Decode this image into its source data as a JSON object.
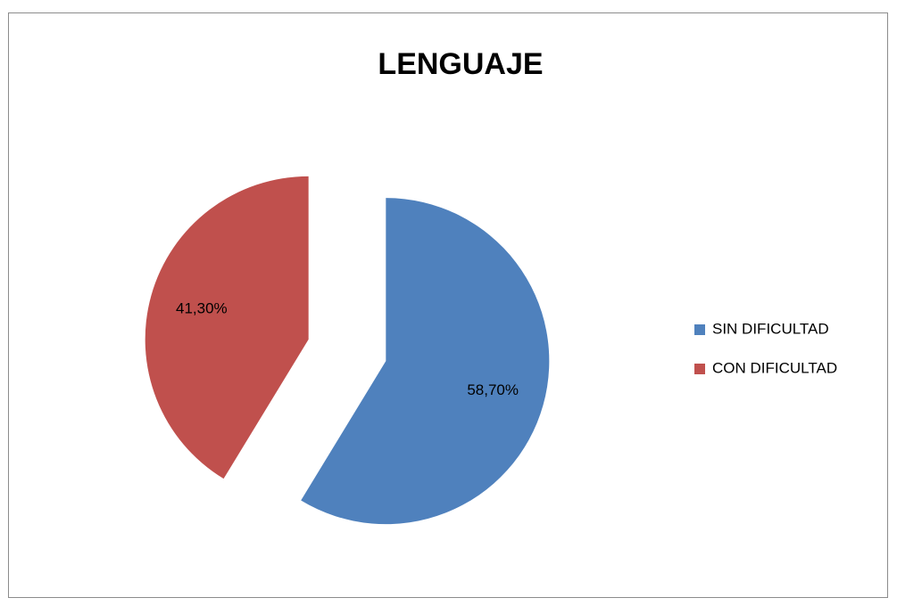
{
  "chart_data": {
    "type": "pie",
    "title": "LENGUAJE",
    "categories": [
      "SIN DIFICULTAD",
      "CON DIFICULTAD"
    ],
    "values": [
      58.7,
      41.3
    ],
    "value_labels": [
      "58,70%",
      "41,30%"
    ],
    "colors": [
      "#4f81bd",
      "#c0504d"
    ],
    "legend": "right"
  }
}
